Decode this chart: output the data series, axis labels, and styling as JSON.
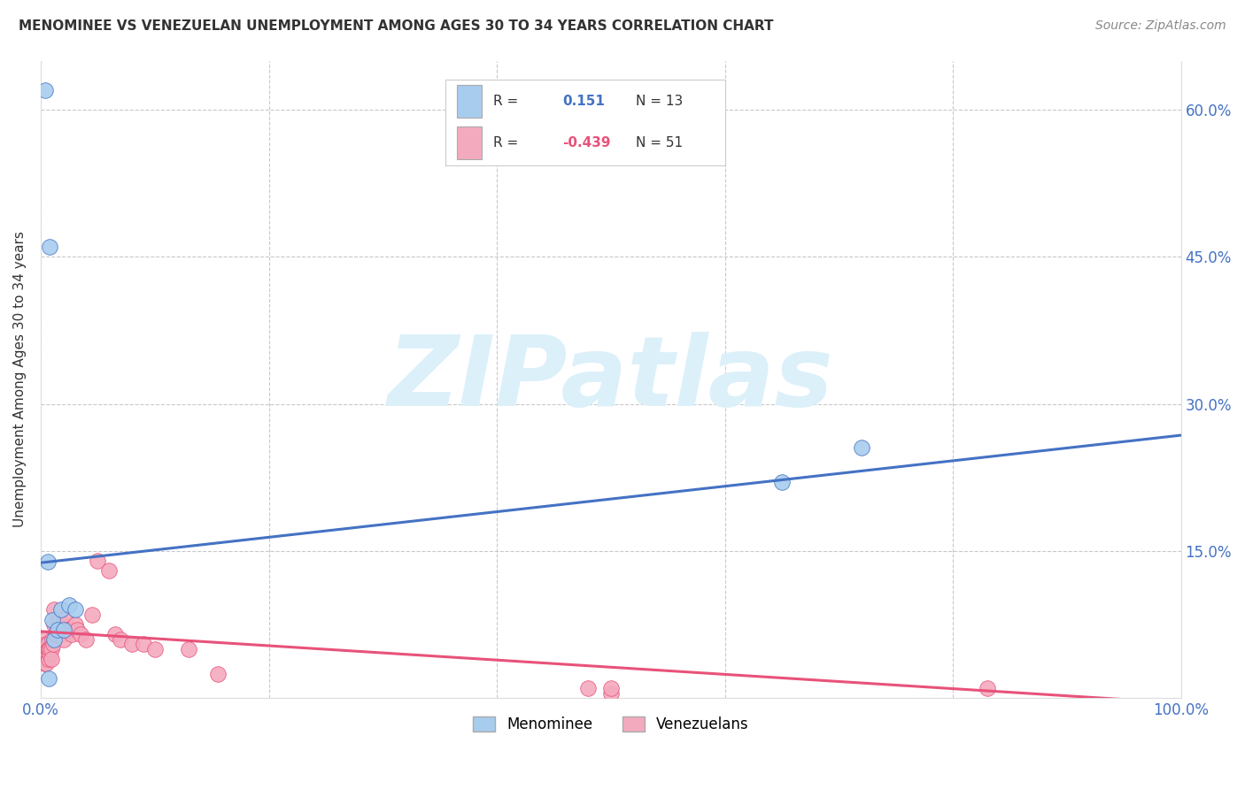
{
  "title": "MENOMINEE VS VENEZUELAN UNEMPLOYMENT AMONG AGES 30 TO 34 YEARS CORRELATION CHART",
  "source": "Source: ZipAtlas.com",
  "ylabel": "Unemployment Among Ages 30 to 34 years",
  "xlim": [
    0.0,
    1.0
  ],
  "ylim": [
    0.0,
    0.65
  ],
  "xticks": [
    0.0,
    0.2,
    0.4,
    0.6,
    0.8,
    1.0
  ],
  "xticklabels": [
    "0.0%",
    "",
    "",
    "",
    "",
    "100.0%"
  ],
  "yticks": [
    0.0,
    0.15,
    0.3,
    0.45,
    0.6
  ],
  "yticklabels_right": [
    "",
    "15.0%",
    "30.0%",
    "45.0%",
    "60.0%"
  ],
  "legend_r_val_menominee": "0.151",
  "legend_n_menominee": "N = 13",
  "legend_r_val_venezuelan": "-0.439",
  "legend_n_venezuelan": "N = 51",
  "menominee_color": "#A8CCEE",
  "venezuelan_color": "#F4AABE",
  "trendline_menominee_color": "#4472C4",
  "trendline_venezuelan_color": "#E8527A",
  "watermark": "ZIPatlas",
  "watermark_color": "#DCF0FA",
  "background_color": "#FFFFFF",
  "grid_color": "#BBBBBB",
  "menominee_x": [
    0.004,
    0.006,
    0.007,
    0.008,
    0.01,
    0.012,
    0.015,
    0.018,
    0.02,
    0.025,
    0.03,
    0.65,
    0.72
  ],
  "menominee_y": [
    0.62,
    0.139,
    0.02,
    0.46,
    0.08,
    0.06,
    0.07,
    0.09,
    0.07,
    0.095,
    0.09,
    0.22,
    0.255
  ],
  "venezuelan_x": [
    0.001,
    0.002,
    0.003,
    0.003,
    0.003,
    0.004,
    0.004,
    0.005,
    0.005,
    0.005,
    0.006,
    0.006,
    0.006,
    0.007,
    0.007,
    0.008,
    0.008,
    0.009,
    0.009,
    0.01,
    0.011,
    0.012,
    0.012,
    0.013,
    0.014,
    0.015,
    0.016,
    0.018,
    0.02,
    0.021,
    0.023,
    0.025,
    0.027,
    0.03,
    0.032,
    0.035,
    0.04,
    0.045,
    0.05,
    0.06,
    0.065,
    0.07,
    0.08,
    0.09,
    0.1,
    0.13,
    0.155,
    0.48,
    0.5,
    0.83,
    0.5
  ],
  "venezuelan_y": [
    0.05,
    0.05,
    0.04,
    0.035,
    0.06,
    0.04,
    0.05,
    0.055,
    0.04,
    0.035,
    0.055,
    0.045,
    0.05,
    0.05,
    0.04,
    0.045,
    0.05,
    0.05,
    0.04,
    0.06,
    0.055,
    0.09,
    0.075,
    0.065,
    0.065,
    0.07,
    0.08,
    0.065,
    0.06,
    0.08,
    0.07,
    0.07,
    0.065,
    0.075,
    0.07,
    0.065,
    0.06,
    0.085,
    0.14,
    0.13,
    0.065,
    0.06,
    0.055,
    0.055,
    0.05,
    0.05,
    0.025,
    0.01,
    0.005,
    0.01,
    0.01
  ],
  "menominee_trendline_x": [
    0.0,
    1.0
  ],
  "menominee_trendline_y": [
    0.138,
    0.268
  ],
  "venezuelan_trendline_x": [
    0.0,
    1.0
  ],
  "venezuelan_trendline_y": [
    0.068,
    -0.005
  ]
}
